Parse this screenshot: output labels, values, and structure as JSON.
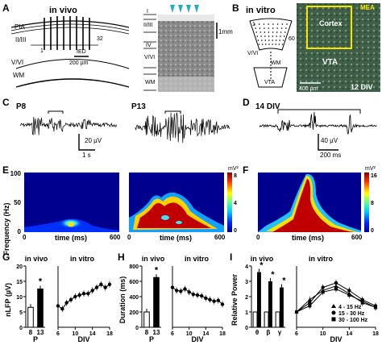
{
  "panels": {
    "A": {
      "letter": "A",
      "title": "in vivo",
      "pia": "PIA",
      "l23": "II/III",
      "l1num": "1",
      "l32num": "32",
      "v_vi": "V/VI",
      "wm": "WM",
      "ied": "IED",
      "ied_scale": "200 µm",
      "layers": [
        "I",
        "II/III",
        "IV",
        "V/VI",
        "WM"
      ],
      "scale": "1mm"
    },
    "B": {
      "letter": "B",
      "title": "in vitro",
      "n1": "1",
      "n60": "60",
      "v_vi": "V/VI",
      "wm": "WM",
      "vta": "VTA",
      "mea": "MEA",
      "cortex": "Cortex",
      "vta2": "VTA",
      "scale": "400 µm",
      "div": "12 DIV"
    },
    "C": {
      "letter": "C",
      "age1": "P8",
      "age2": "P13",
      "scale_y": "20 µV",
      "scale_x": "1 s"
    },
    "D": {
      "letter": "D",
      "div": "14 DIV",
      "scale_y": "40 µV",
      "scale_x": "200 ms"
    },
    "E": {
      "letter": "E",
      "ylabel": "Frequency (Hz)",
      "xlabel": "time (ms)",
      "y100": "100",
      "y50": "50",
      "y0": "0",
      "x0a": "0",
      "x600a": "600",
      "x0b": "0",
      "x600b": "600",
      "cb_unit": "mV²",
      "cb_max": "8",
      "cb_mid": "4",
      "cb_min": "0"
    },
    "F": {
      "letter": "F",
      "xlabel": "time (ms)",
      "x0": "0",
      "x600": "600",
      "cb_unit": "mV²",
      "cb_max": "16",
      "cb_mid": "8",
      "cb_min": "0"
    },
    "G": {
      "letter": "G",
      "invivo": "in vivo",
      "invitro": "in vitro",
      "ylabel": "nLFP (µV)",
      "xlabel1": "P",
      "xlabel2": "DIV",
      "yt": [
        "20",
        "15",
        "10",
        "5",
        "0"
      ],
      "xt1": [
        "8",
        "13"
      ],
      "xt2": [
        "6",
        "10",
        "14",
        "18"
      ],
      "star": "*"
    },
    "H": {
      "letter": "H",
      "invivo": "in vivo",
      "invitro": "in vitro",
      "ylabel": "Duration (ms)",
      "xlabel1": "P",
      "xlabel2": "DIV",
      "yt": [
        "800",
        "600",
        "400",
        "200",
        "0"
      ],
      "xt1": [
        "8",
        "13"
      ],
      "xt2": [
        "6",
        "10",
        "14",
        "18"
      ],
      "star": "*"
    },
    "I": {
      "letter": "I",
      "invivo": "in vivo",
      "invitro": "in vitro",
      "ylabel": "Relative Power",
      "xlabel2": "DIV",
      "yt": [
        "4",
        "3",
        "2",
        "1",
        "0"
      ],
      "xt1": [
        "θ",
        "β",
        "γ"
      ],
      "xt2": [
        "6",
        "10",
        "14",
        "18"
      ],
      "legend": [
        "4 - 15 Hz",
        "15 - 30 Hz",
        "30 - 100 Hz"
      ],
      "star": "*"
    }
  },
  "chart_data": [
    {
      "type": "bar",
      "panel": "G",
      "categories": [
        "8",
        "13"
      ],
      "values": [
        6.5,
        12.5
      ],
      "ylabel": "nLFP (µV)",
      "xlabel": "P",
      "ylim": [
        0,
        20
      ]
    },
    {
      "type": "line",
      "panel": "G",
      "x": [
        6,
        7,
        8,
        9,
        10,
        11,
        12,
        13,
        14,
        15,
        16,
        17,
        18
      ],
      "values": [
        7,
        6,
        8,
        9,
        10,
        10.5,
        11,
        11,
        12,
        13,
        14,
        13,
        14
      ],
      "xlabel": "DIV",
      "ylim": [
        0,
        20
      ]
    },
    {
      "type": "bar",
      "panel": "H",
      "categories": [
        "8",
        "13"
      ],
      "values": [
        200,
        650
      ],
      "ylabel": "Duration (ms)",
      "xlabel": "P",
      "ylim": [
        0,
        800
      ]
    },
    {
      "type": "line",
      "panel": "H",
      "x": [
        6,
        7,
        8,
        9,
        10,
        11,
        12,
        13,
        14,
        15,
        16,
        17,
        18
      ],
      "values": [
        520,
        480,
        470,
        500,
        460,
        430,
        420,
        410,
        380,
        360,
        340,
        350,
        300
      ],
      "xlabel": "DIV",
      "ylim": [
        0,
        800
      ]
    },
    {
      "type": "bar",
      "panel": "I",
      "categories": [
        "θ",
        "β",
        "γ"
      ],
      "series": [
        {
          "values": [
            1,
            1,
            1
          ]
        },
        {
          "values": [
            3.6,
            3,
            2.6
          ]
        }
      ],
      "ylabel": "Relative Power",
      "ylim": [
        0,
        4
      ]
    },
    {
      "type": "line",
      "panel": "I",
      "x": [
        6,
        8,
        10,
        12,
        14,
        16,
        18
      ],
      "series": [
        {
          "name": "4 - 15 Hz",
          "values": [
            1,
            1.8,
            2.4,
            2.7,
            2.2,
            1.6,
            1.3
          ]
        },
        {
          "name": "15 - 30 Hz",
          "values": [
            1,
            1.6,
            2.6,
            2.9,
            2.4,
            1.8,
            1.4
          ]
        },
        {
          "name": "30 - 100 Hz",
          "values": [
            1,
            1.4,
            2.3,
            2.5,
            2.1,
            1.7,
            1.3
          ]
        }
      ],
      "xlabel": "DIV",
      "ylim": [
        0,
        4
      ]
    }
  ]
}
